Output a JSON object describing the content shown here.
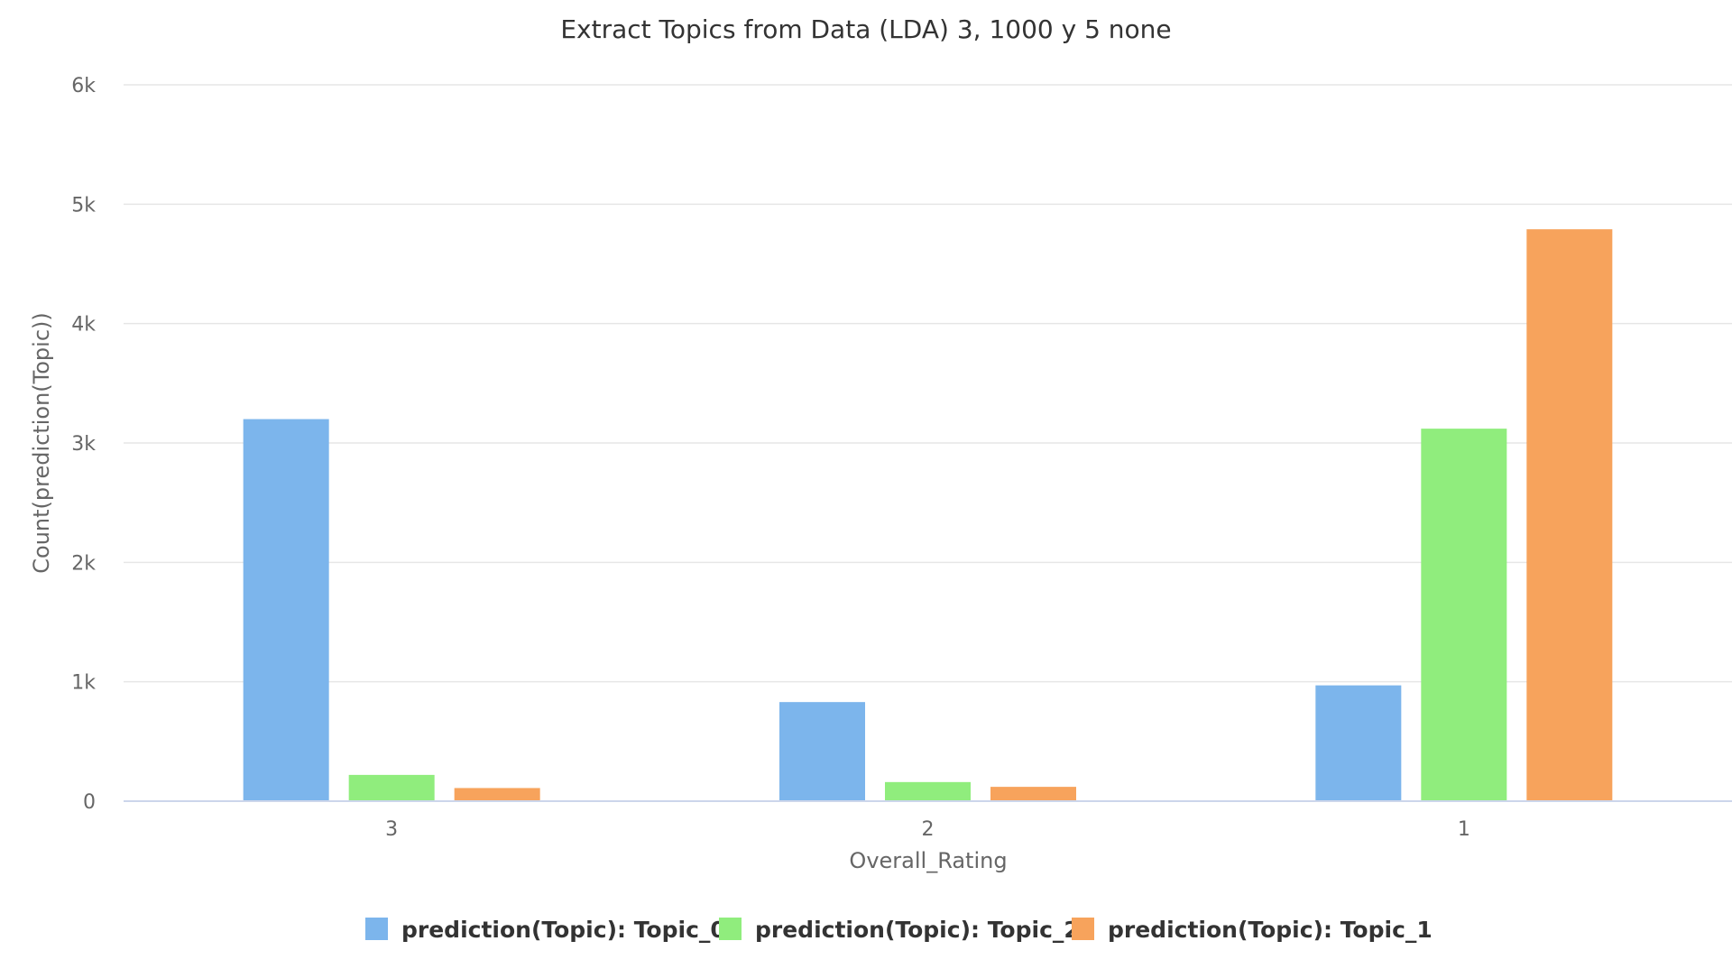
{
  "chart_data": {
    "type": "bar",
    "title": "Extract Topics from Data (LDA) 3, 1000 y 5 none",
    "xlabel": "Overall_Rating",
    "ylabel": "Count(prediction(Topic))",
    "categories": [
      "3",
      "2",
      "1"
    ],
    "series": [
      {
        "name": "prediction(Topic): Topic_0",
        "color": "#7cb5ec",
        "values": [
          3200,
          830,
          970
        ]
      },
      {
        "name": "prediction(Topic): Topic_2",
        "color": "#90ed7d",
        "values": [
          220,
          160,
          3120
        ]
      },
      {
        "name": "prediction(Topic): Topic_1",
        "color": "#f7a35c",
        "values": [
          110,
          120,
          4790
        ]
      }
    ],
    "ylim": [
      0,
      6000
    ],
    "yticks": [
      {
        "value": 0,
        "label": "0"
      },
      {
        "value": 1000,
        "label": "1k"
      },
      {
        "value": 2000,
        "label": "2k"
      },
      {
        "value": 3000,
        "label": "3k"
      },
      {
        "value": 4000,
        "label": "4k"
      },
      {
        "value": 5000,
        "label": "5k"
      },
      {
        "value": 6000,
        "label": "6k"
      }
    ],
    "grid": true,
    "legend_position": "bottom-center"
  }
}
